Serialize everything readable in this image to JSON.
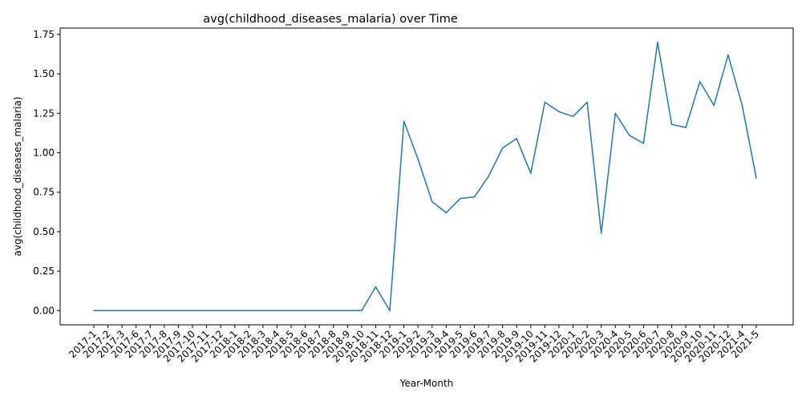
{
  "chart_data": {
    "type": "line",
    "title": "avg(childhood_diseases_malaria) over Time",
    "xlabel": "Year-Month",
    "ylabel": "avg(childhood_diseases_malaria)",
    "ylim": [
      -0.09,
      1.79
    ],
    "yticks": [
      0.0,
      0.25,
      0.5,
      0.75,
      1.0,
      1.25,
      1.5,
      1.75
    ],
    "ytick_labels": [
      "0.00",
      "0.25",
      "0.50",
      "0.75",
      "1.00",
      "1.25",
      "1.50",
      "1.75"
    ],
    "grid": false,
    "line_color": "#1f77b4",
    "categories": [
      "2017-1",
      "2017-2",
      "2017-3",
      "2017-6",
      "2017-7",
      "2017-8",
      "2017-9",
      "2017-10",
      "2017-11",
      "2017-12",
      "2018-1",
      "2018-2",
      "2018-3",
      "2018-4",
      "2018-5",
      "2018-6",
      "2018-7",
      "2018-8",
      "2018-9",
      "2018-10",
      "2018-11",
      "2018-12",
      "2019-1",
      "2019-2",
      "2019-3",
      "2019-4",
      "2019-5",
      "2019-6",
      "2019-7",
      "2019-8",
      "2019-9",
      "2019-10",
      "2019-11",
      "2019-12",
      "2020-1",
      "2020-2",
      "2020-3",
      "2020-4",
      "2020-5",
      "2020-6",
      "2020-7",
      "2020-8",
      "2020-9",
      "2020-10",
      "2020-11",
      "2020-12",
      "2021-4",
      "2021-5"
    ],
    "values": [
      0,
      0,
      0,
      0,
      0,
      0,
      0,
      0,
      0,
      0,
      0,
      0,
      0,
      0,
      0,
      0,
      0,
      0,
      0,
      0,
      0.15,
      0,
      1.2,
      0.96,
      0.69,
      0.62,
      0.71,
      0.72,
      0.85,
      1.03,
      1.09,
      0.87,
      1.32,
      1.26,
      1.23,
      1.32,
      0.49,
      1.25,
      1.11,
      1.06,
      1.7,
      1.18,
      1.16,
      1.45,
      1.3,
      1.62,
      1.3,
      0.84
    ]
  }
}
